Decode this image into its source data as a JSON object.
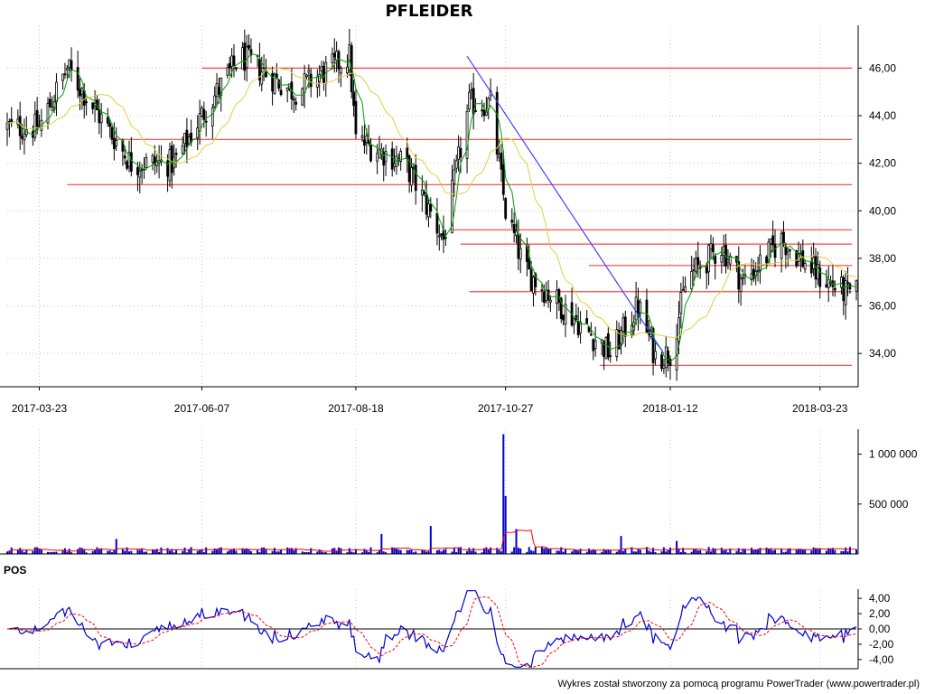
{
  "chart_title": "PFLEIDER",
  "footer_text": "Wykres został stworzony za pomocą programu PowerTrader (www.powertrader.pl)",
  "pos_label": "POS",
  "colors": {
    "candle": "#000000",
    "ma_fast": "#00a000",
    "ma_slow": "#e0d040",
    "levels": "#ff4040",
    "trendline": "#4040ff",
    "volume_bar": "#0000cc",
    "volume_ma": "#ff0000",
    "pos_line": "#0000cc",
    "pos_signal": "#ff0000",
    "grid": "#c8c8c8"
  },
  "chart_data": [
    {
      "type": "candlestick",
      "panel": "price",
      "title": "PFLEIDER",
      "x_tick_labels": [
        "2017-03-23",
        "2017-06-07",
        "2017-08-18",
        "2017-10-27",
        "2018-01-12",
        "2018-03-23"
      ],
      "y_tick_labels": [
        "34,00",
        "36,00",
        "38,00",
        "40,00",
        "42,00",
        "44,00",
        "46,00"
      ],
      "ylim": [
        32.6,
        47.8
      ],
      "key_points": [
        {
          "date": "2017-03-23",
          "close": 43.5
        },
        {
          "date": "2017-04-05",
          "close": 46.0
        },
        {
          "date": "2017-05-05",
          "close": 42.0
        },
        {
          "date": "2017-05-25",
          "close": 42.0
        },
        {
          "date": "2017-06-07",
          "close": 44.0
        },
        {
          "date": "2017-06-25",
          "close": 46.5
        },
        {
          "date": "2017-07-20",
          "close": 45.0
        },
        {
          "date": "2017-08-15",
          "close": 46.5
        },
        {
          "date": "2017-08-18",
          "close": 43.0
        },
        {
          "date": "2017-09-10",
          "close": 42.0
        },
        {
          "date": "2017-09-28",
          "close": 38.8
        },
        {
          "date": "2017-10-10",
          "close": 44.5
        },
        {
          "date": "2017-10-20",
          "close": 44.5
        },
        {
          "date": "2017-10-27",
          "close": 40.0
        },
        {
          "date": "2017-11-05",
          "close": 37.5
        },
        {
          "date": "2017-11-20",
          "close": 36.2
        },
        {
          "date": "2017-12-15",
          "close": 34.0
        },
        {
          "date": "2017-12-28",
          "close": 36.0
        },
        {
          "date": "2018-01-05",
          "close": 33.9
        },
        {
          "date": "2018-01-12",
          "close": 34.0
        },
        {
          "date": "2018-01-20",
          "close": 37.2
        },
        {
          "date": "2018-02-05",
          "close": 38.5
        },
        {
          "date": "2018-02-15",
          "close": 37.0
        },
        {
          "date": "2018-03-05",
          "close": 38.8
        },
        {
          "date": "2018-03-23",
          "close": 37.2
        },
        {
          "date": "2018-04-05",
          "close": 36.5
        }
      ],
      "horizontal_levels": [
        {
          "value": 46.0,
          "from": "2017-06-07",
          "to": "2018-04-07"
        },
        {
          "value": 43.0,
          "from": "2017-04-25",
          "to": "2018-04-07"
        },
        {
          "value": 41.1,
          "from": "2017-04-05",
          "to": "2018-04-07"
        },
        {
          "value": 39.2,
          "from": "2017-10-01",
          "to": "2018-04-07"
        },
        {
          "value": 38.6,
          "from": "2017-10-06",
          "to": "2018-04-07"
        },
        {
          "value": 37.7,
          "from": "2017-12-05",
          "to": "2018-04-07"
        },
        {
          "value": 36.6,
          "from": "2017-10-10",
          "to": "2018-04-07"
        },
        {
          "value": 33.5,
          "from": "2017-12-10",
          "to": "2018-04-07"
        }
      ],
      "trendline": {
        "from": {
          "date": "2017-10-09",
          "value": 46.5
        },
        "to": {
          "date": "2018-01-09",
          "value": 34.0
        }
      }
    },
    {
      "type": "bar",
      "panel": "volume",
      "y_tick_labels": [
        "500 000",
        "1 000 000"
      ],
      "ylim": [
        0,
        1250000
      ],
      "notable_bars": [
        {
          "date": "2017-04-28",
          "value": 150000
        },
        {
          "date": "2017-08-30",
          "value": 200000
        },
        {
          "date": "2017-09-22",
          "value": 280000
        },
        {
          "date": "2017-10-26",
          "value": 1200000
        },
        {
          "date": "2017-10-27",
          "value": 580000
        },
        {
          "date": "2017-11-01",
          "value": 250000
        },
        {
          "date": "2017-12-20",
          "value": 180000
        },
        {
          "date": "2018-01-15",
          "value": 130000
        }
      ]
    },
    {
      "type": "line",
      "panel": "oscillator",
      "title": "POS",
      "y_tick_labels": [
        "-4,00",
        "-2,00",
        "0,00",
        "2,00",
        "4,00"
      ],
      "ylim": [
        -5.2,
        5.2
      ],
      "series": [
        {
          "values_key": "pos"
        },
        {
          "values_key": "signal"
        }
      ]
    }
  ]
}
